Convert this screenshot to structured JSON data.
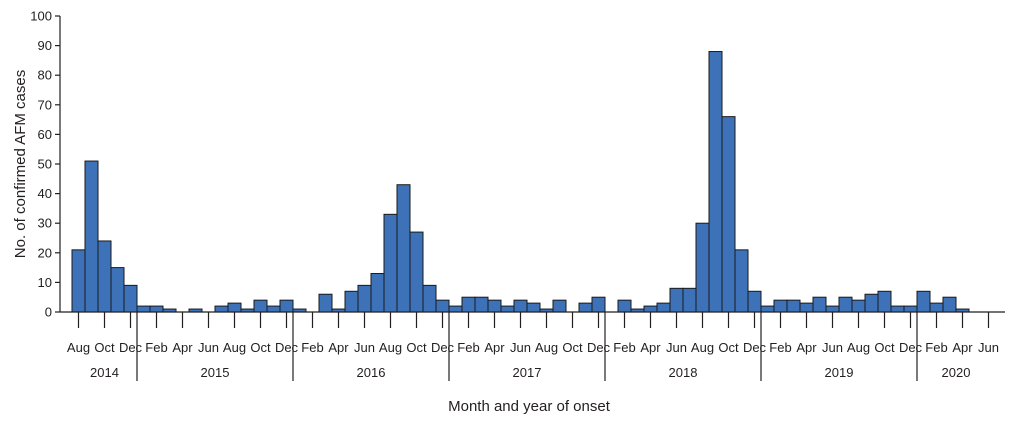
{
  "chart_data": {
    "type": "bar",
    "xlabel": "Month and year of onset",
    "ylabel": "No. of confirmed AFM cases",
    "ylim": [
      0,
      100
    ],
    "y_ticks": [
      0,
      10,
      20,
      30,
      40,
      50,
      60,
      70,
      80,
      90,
      100
    ],
    "grid": false,
    "legend": "none",
    "bar_color": "#3d72b8",
    "start": "2014-08",
    "categories": [
      "2014-08",
      "2014-09",
      "2014-10",
      "2014-11",
      "2014-12",
      "2015-01",
      "2015-02",
      "2015-03",
      "2015-04",
      "2015-05",
      "2015-06",
      "2015-07",
      "2015-08",
      "2015-09",
      "2015-10",
      "2015-11",
      "2015-12",
      "2016-01",
      "2016-02",
      "2016-03",
      "2016-04",
      "2016-05",
      "2016-06",
      "2016-07",
      "2016-08",
      "2016-09",
      "2016-10",
      "2016-11",
      "2016-12",
      "2017-01",
      "2017-02",
      "2017-03",
      "2017-04",
      "2017-05",
      "2017-06",
      "2017-07",
      "2017-08",
      "2017-09",
      "2017-10",
      "2017-11",
      "2017-12",
      "2018-01",
      "2018-02",
      "2018-03",
      "2018-04",
      "2018-05",
      "2018-06",
      "2018-07",
      "2018-08",
      "2018-09",
      "2018-10",
      "2018-11",
      "2018-12",
      "2019-01",
      "2019-02",
      "2019-03",
      "2019-04",
      "2019-05",
      "2019-06",
      "2019-07",
      "2019-08",
      "2019-09",
      "2019-10",
      "2019-11",
      "2019-12",
      "2020-01",
      "2020-02",
      "2020-03",
      "2020-04",
      "2020-05",
      "2020-06"
    ],
    "values": [
      21,
      51,
      24,
      15,
      9,
      2,
      2,
      1,
      0,
      1,
      0,
      2,
      3,
      1,
      4,
      2,
      4,
      1,
      0,
      6,
      1,
      7,
      9,
      13,
      33,
      43,
      27,
      9,
      4,
      2,
      5,
      5,
      4,
      2,
      4,
      3,
      1,
      4,
      0,
      3,
      5,
      0,
      4,
      1,
      2,
      3,
      8,
      8,
      30,
      88,
      66,
      21,
      7,
      2,
      4,
      4,
      3,
      5,
      2,
      5,
      4,
      6,
      7,
      2,
      2,
      7,
      3,
      5,
      1,
      0,
      0
    ],
    "month_labels": [
      {
        "index": 0,
        "text": "Aug"
      },
      {
        "index": 2,
        "text": "Oct"
      },
      {
        "index": 4,
        "text": "Dec"
      },
      {
        "index": 6,
        "text": "Feb"
      },
      {
        "index": 8,
        "text": "Apr"
      },
      {
        "index": 10,
        "text": "Jun"
      },
      {
        "index": 12,
        "text": "Aug"
      },
      {
        "index": 14,
        "text": "Oct"
      },
      {
        "index": 16,
        "text": "Dec"
      },
      {
        "index": 18,
        "text": "Feb"
      },
      {
        "index": 20,
        "text": "Apr"
      },
      {
        "index": 22,
        "text": "Jun"
      },
      {
        "index": 24,
        "text": "Aug"
      },
      {
        "index": 26,
        "text": "Oct"
      },
      {
        "index": 28,
        "text": "Dec"
      },
      {
        "index": 30,
        "text": "Feb"
      },
      {
        "index": 32,
        "text": "Apr"
      },
      {
        "index": 34,
        "text": "Jun"
      },
      {
        "index": 36,
        "text": "Aug"
      },
      {
        "index": 38,
        "text": "Oct"
      },
      {
        "index": 40,
        "text": "Dec"
      },
      {
        "index": 42,
        "text": "Feb"
      },
      {
        "index": 44,
        "text": "Apr"
      },
      {
        "index": 46,
        "text": "Jun"
      },
      {
        "index": 48,
        "text": "Aug"
      },
      {
        "index": 50,
        "text": "Oct"
      },
      {
        "index": 52,
        "text": "Dec"
      },
      {
        "index": 54,
        "text": "Feb"
      },
      {
        "index": 56,
        "text": "Apr"
      },
      {
        "index": 58,
        "text": "Jun"
      },
      {
        "index": 60,
        "text": "Aug"
      },
      {
        "index": 62,
        "text": "Oct"
      },
      {
        "index": 64,
        "text": "Dec"
      },
      {
        "index": 66,
        "text": "Feb"
      },
      {
        "index": 68,
        "text": "Apr"
      },
      {
        "index": 70,
        "text": "Jun"
      }
    ],
    "years": [
      {
        "label": "2014",
        "first": 0,
        "last": 4
      },
      {
        "label": "2015",
        "first": 5,
        "last": 16
      },
      {
        "label": "2016",
        "first": 17,
        "last": 28
      },
      {
        "label": "2017",
        "first": 29,
        "last": 40
      },
      {
        "label": "2018",
        "first": 41,
        "last": 52
      },
      {
        "label": "2019",
        "first": 53,
        "last": 64
      },
      {
        "label": "2020",
        "first": 65,
        "last": 70
      }
    ]
  }
}
